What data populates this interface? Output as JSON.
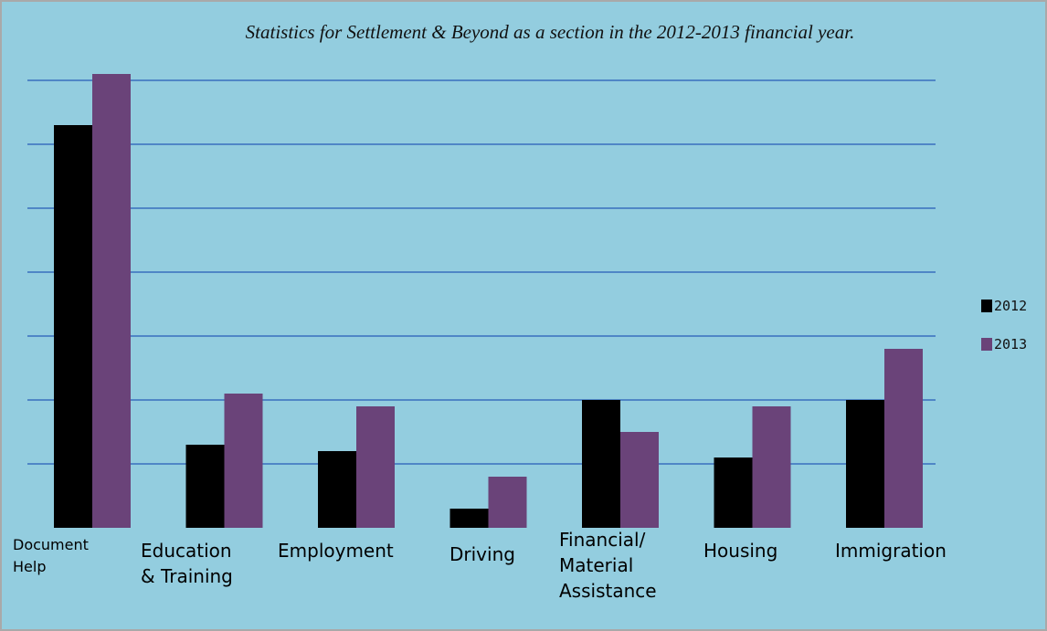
{
  "chart_data": {
    "type": "bar",
    "title": "Statistics for Settlement & Beyond as a section in the 2012-2013 financial year.",
    "xlabel": "",
    "ylabel": "",
    "categories": [
      "Document Help",
      "Education & Training",
      "Employment",
      "Driving",
      "Financial/ Material Assistance",
      "Housing",
      "Immigration"
    ],
    "series": [
      {
        "name": "2012",
        "color": "#000000",
        "values": [
          6.3,
          1.3,
          1.2,
          0.3,
          2.0,
          1.1,
          2.0
        ]
      },
      {
        "name": "2013",
        "color": "#6a4379",
        "values": [
          7.1,
          2.1,
          1.9,
          0.8,
          1.5,
          1.9,
          2.8
        ]
      }
    ],
    "ylim": [
      0,
      7.8
    ],
    "gridline_interval": 1,
    "grid": true,
    "legend_position": "right",
    "background_color": "#93cddf",
    "gridline_color": "#4f86c6"
  }
}
